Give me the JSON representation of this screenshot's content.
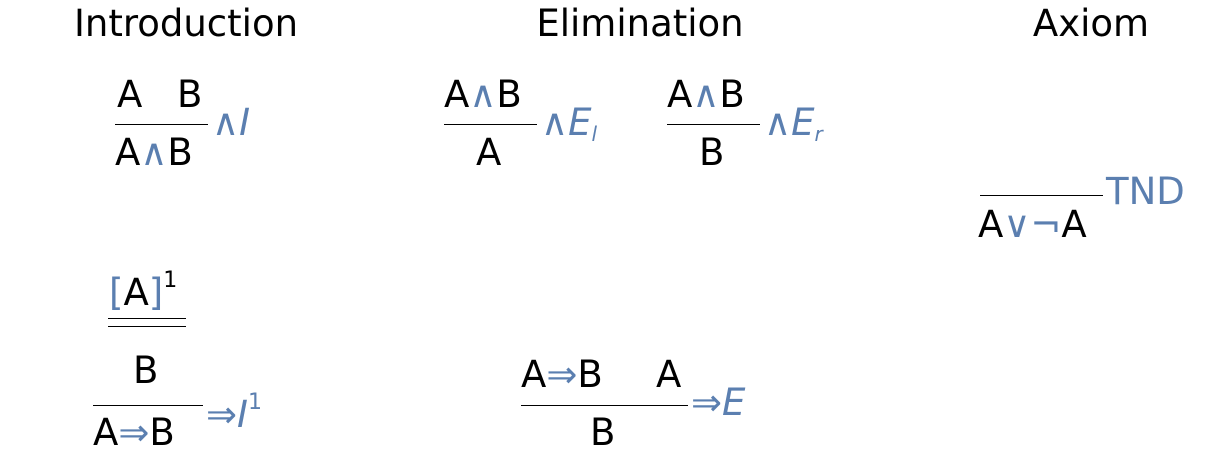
{
  "headers": {
    "introduction": "Introduction",
    "elimination": "Elimination",
    "axiom": "Axiom"
  },
  "and_intro": {
    "premises": [
      "A",
      "B"
    ],
    "conclusion": {
      "left": "A",
      "op": "∧",
      "right": "B"
    },
    "rule": "∧I"
  },
  "and_elim_l": {
    "premise": {
      "left": "A",
      "op": "∧",
      "right": "B"
    },
    "conclusion": "A",
    "rule_op": "∧",
    "rule_E": "E",
    "rule_sub": "l"
  },
  "and_elim_r": {
    "premise": {
      "left": "A",
      "op": "∧",
      "right": "B"
    },
    "conclusion": "B",
    "rule_op": "∧",
    "rule_E": "E",
    "rule_sub": "r"
  },
  "tnd": {
    "conclusion": {
      "left": "A",
      "op1": "∨",
      "op2": "¬",
      "right": "A"
    },
    "rule": "TND"
  },
  "imp_intro": {
    "assumption": {
      "open": "[",
      "inner": "A",
      "close": "]",
      "label": "1"
    },
    "middle": "B",
    "conclusion": {
      "left": "A",
      "op": "⇒",
      "right": "B"
    },
    "rule_op": "⇒",
    "rule_I": "I",
    "rule_label": "1"
  },
  "imp_elim": {
    "premise1": {
      "left": "A",
      "op": "⇒",
      "right": "B"
    },
    "premise2": "A",
    "conclusion": "B",
    "rule_op": "⇒",
    "rule_E": "E"
  },
  "colors": {
    "accent": "#5b7fb0",
    "text": "#000000"
  }
}
